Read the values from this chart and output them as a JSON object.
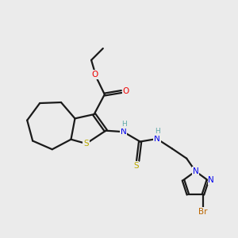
{
  "bg_color": "#ebebeb",
  "atom_colors": {
    "C": "#000000",
    "H": "#5fa8a8",
    "N": "#0000ee",
    "O": "#ee0000",
    "S": "#bbaa00",
    "Br": "#bb6600"
  },
  "bond_color": "#1a1a1a",
  "bond_lw": 1.6,
  "figsize": [
    3.0,
    3.0
  ],
  "dpi": 100
}
